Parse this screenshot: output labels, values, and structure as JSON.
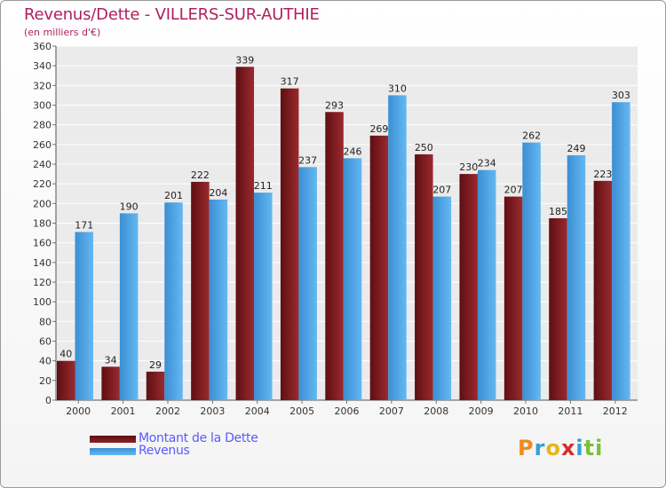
{
  "chart_data": {
    "type": "bar",
    "title": "Revenus/Dette - VILLERS-SUR-AUTHIE",
    "subtitle": "(en milliers d'€)",
    "categories": [
      "2000",
      "2001",
      "2002",
      "2003",
      "2004",
      "2005",
      "2006",
      "2007",
      "2008",
      "2009",
      "2010",
      "2011",
      "2012"
    ],
    "series": [
      {
        "name": "Montant de la Dette",
        "color": "#7a1a1e",
        "values": [
          40,
          34,
          29,
          222,
          339,
          317,
          293,
          269,
          250,
          230,
          207,
          185,
          223
        ]
      },
      {
        "name": "Revenus",
        "color": "#4da6e8",
        "values": [
          171,
          190,
          201,
          204,
          211,
          237,
          246,
          310,
          207,
          234,
          262,
          249,
          303
        ]
      }
    ],
    "ylim": [
      0,
      360
    ],
    "ytick_step": 20,
    "grid": true,
    "legend_position": "bottom-left"
  },
  "logo": {
    "letters": [
      "P",
      "r",
      "o",
      "x",
      "i",
      "t",
      "i"
    ],
    "colors": [
      "#f08a1c",
      "#2f9fd8",
      "#e8b51a",
      "#d62c2c",
      "#2f9fd8",
      "#7bbf3a",
      "#7bbf3a"
    ]
  }
}
